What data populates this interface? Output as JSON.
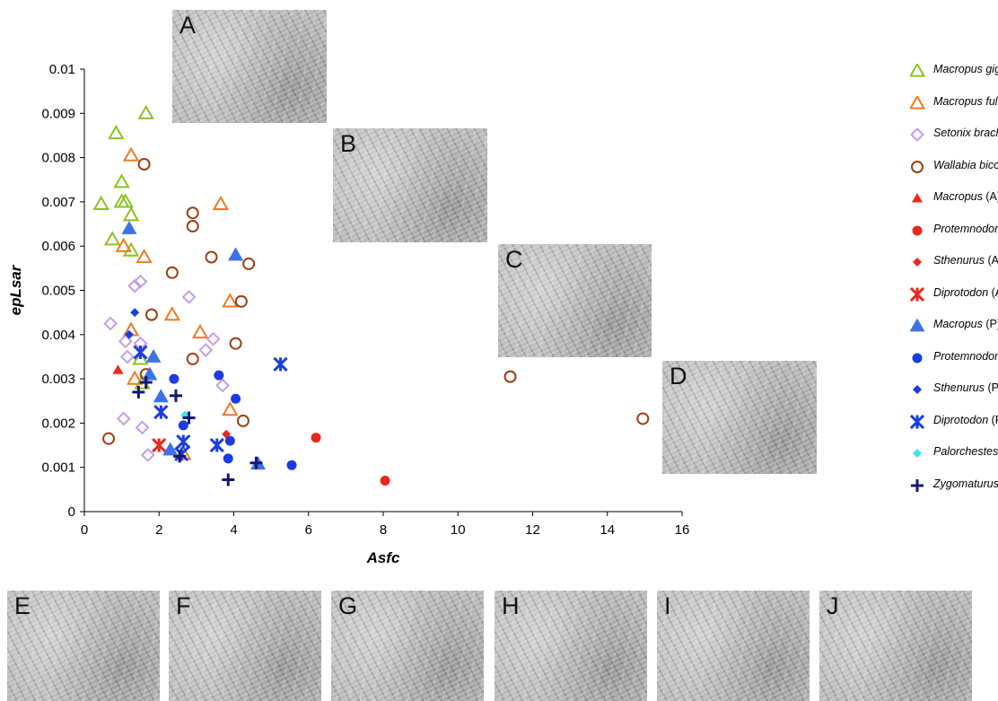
{
  "chart_data": {
    "type": "scatter",
    "xlabel": "Asfc",
    "ylabel": "epLsar",
    "xlim": [
      0,
      16
    ],
    "ylim": [
      0,
      0.01
    ],
    "x_ticks": [
      "0",
      "2",
      "4",
      "6",
      "8",
      "10",
      "12",
      "14",
      "16"
    ],
    "y_ticks": [
      "0",
      "0.001",
      "0.002",
      "0.003",
      "0.004",
      "0.005",
      "0.006",
      "0.007",
      "0.008",
      "0.009",
      "0.01"
    ],
    "legend_position": "right",
    "series": [
      {
        "name": "Macropus giganteus",
        "name_italic": "Macropus giganteus",
        "name_suffix": "",
        "marker": "triangle-open",
        "color": "#8ac31f",
        "points": [
          [
            1.65,
            0.009
          ],
          [
            0.85,
            0.00855
          ],
          [
            1.0,
            0.00745
          ],
          [
            0.45,
            0.00695
          ],
          [
            1.0,
            0.007
          ],
          [
            1.1,
            0.007
          ],
          [
            1.25,
            0.0067
          ],
          [
            0.75,
            0.00615
          ],
          [
            1.25,
            0.0059
          ],
          [
            1.5,
            0.00345
          ],
          [
            1.55,
            0.0029
          ]
        ]
      },
      {
        "name": "Macropus fuliginosus",
        "name_italic": "Macropus fuliginosus",
        "name_suffix": "",
        "marker": "triangle-open",
        "color": "#f07a22",
        "points": [
          [
            1.25,
            0.00805
          ],
          [
            3.65,
            0.00695
          ],
          [
            1.05,
            0.006
          ],
          [
            1.6,
            0.00575
          ],
          [
            3.9,
            0.00475
          ],
          [
            2.35,
            0.00445
          ],
          [
            3.1,
            0.00405
          ],
          [
            1.25,
            0.0041
          ],
          [
            1.35,
            0.003
          ],
          [
            3.9,
            0.0023
          ],
          [
            2.65,
            0.0013
          ]
        ]
      },
      {
        "name": "Setonix brachyurus",
        "name_italic": "Setonix brachyurus",
        "name_suffix": "",
        "marker": "diamond-open",
        "color": "#c59ee6",
        "points": [
          [
            1.35,
            0.0051
          ],
          [
            1.5,
            0.0052
          ],
          [
            2.8,
            0.00485
          ],
          [
            0.7,
            0.00425
          ],
          [
            1.1,
            0.00385
          ],
          [
            1.5,
            0.0038
          ],
          [
            3.45,
            0.0039
          ],
          [
            3.25,
            0.00365
          ],
          [
            1.15,
            0.0035
          ],
          [
            3.7,
            0.00285
          ],
          [
            1.05,
            0.0021
          ],
          [
            1.55,
            0.0019
          ],
          [
            1.7,
            0.00128
          ]
        ]
      },
      {
        "name": "Wallabia bicolor",
        "name_italic": "Wallabia bicolor",
        "name_suffix": "",
        "marker": "circle-open",
        "color": "#9c3f16",
        "points": [
          [
            1.6,
            0.00785
          ],
          [
            2.9,
            0.00675
          ],
          [
            2.9,
            0.00645
          ],
          [
            3.4,
            0.00575
          ],
          [
            4.4,
            0.0056
          ],
          [
            2.35,
            0.0054
          ],
          [
            4.2,
            0.00475
          ],
          [
            1.8,
            0.00445
          ],
          [
            4.05,
            0.0038
          ],
          [
            2.9,
            0.00345
          ],
          [
            1.65,
            0.0031
          ],
          [
            0.65,
            0.00165
          ],
          [
            4.25,
            0.00205
          ],
          [
            11.4,
            0.00305
          ],
          [
            14.95,
            0.0021
          ]
        ]
      },
      {
        "name": "Macropus (A)",
        "name_italic": "Macropus",
        "name_suffix": " (A)",
        "marker": "triangle-filled-small",
        "color": "#e8281f",
        "points": [
          [
            0.9,
            0.0032
          ]
        ]
      },
      {
        "name": "Protemnodon (A)",
        "name_italic": "Protemnodon",
        "name_suffix": " (A)",
        "marker": "circle-filled",
        "color": "#e8281f",
        "points": [
          [
            6.2,
            0.00167
          ],
          [
            8.05,
            0.0007
          ]
        ]
      },
      {
        "name": "Sthenurus (A)",
        "name_italic": "Sthenurus",
        "name_suffix": " (A)",
        "marker": "diamond-filled",
        "color": "#e8281f",
        "points": [
          [
            3.8,
            0.00175
          ]
        ]
      },
      {
        "name": "Diprotodon (A)",
        "name_italic": "Diprotodon",
        "name_suffix": " (A)",
        "marker": "xstar",
        "color": "#e8281f",
        "points": [
          [
            2.0,
            0.0015
          ]
        ]
      },
      {
        "name": "Macropus (P)",
        "name_italic": "Macropus",
        "name_suffix": " (P)",
        "marker": "triangle-filled",
        "color": "#3c72e6",
        "points": [
          [
            1.2,
            0.0064
          ],
          [
            4.05,
            0.0058
          ],
          [
            1.85,
            0.0035
          ],
          [
            1.75,
            0.0031
          ],
          [
            2.05,
            0.0026
          ],
          [
            2.3,
            0.0014
          ],
          [
            4.65,
            0.00108
          ]
        ]
      },
      {
        "name": "Protemnodon (P)",
        "name_italic": "Protemnodon",
        "name_suffix": " (P)",
        "marker": "circle-filled",
        "color": "#1a3ce0",
        "points": [
          [
            3.6,
            0.00308
          ],
          [
            2.4,
            0.003
          ],
          [
            4.05,
            0.00255
          ],
          [
            2.65,
            0.00195
          ],
          [
            3.9,
            0.0016
          ],
          [
            3.85,
            0.0012
          ],
          [
            5.55,
            0.00105
          ]
        ]
      },
      {
        "name": "Sthenurus (P)",
        "name_italic": "Sthenurus",
        "name_suffix": " (P)",
        "marker": "diamond-filled",
        "color": "#1a3ce0",
        "points": [
          [
            1.35,
            0.0045
          ],
          [
            1.2,
            0.004
          ]
        ]
      },
      {
        "name": "Diprotodon (P)",
        "name_italic": "Diprotodon",
        "name_suffix": " (P)",
        "marker": "xstar",
        "color": "#1a3ce0",
        "points": [
          [
            5.25,
            0.00333
          ],
          [
            1.5,
            0.0036
          ],
          [
            2.05,
            0.00225
          ],
          [
            2.65,
            0.00158
          ],
          [
            3.55,
            0.0015
          ],
          [
            2.6,
            0.0013
          ]
        ]
      },
      {
        "name": "Palorchestes (P)",
        "name_italic": "Palorchestes",
        "name_suffix": " (P)",
        "marker": "diamond-filled",
        "color": "#37e6e8",
        "points": [
          [
            2.7,
            0.00218
          ]
        ]
      },
      {
        "name": "Zygomaturus (P)",
        "name_italic": "Zygomaturus",
        "name_suffix": " (P)",
        "marker": "plus",
        "color": "#14186e",
        "points": [
          [
            1.45,
            0.0027
          ],
          [
            1.65,
            0.00292
          ],
          [
            2.45,
            0.00262
          ],
          [
            2.8,
            0.00212
          ],
          [
            2.55,
            0.00125
          ],
          [
            4.6,
            0.0011
          ],
          [
            3.85,
            0.00072
          ]
        ]
      }
    ]
  },
  "micrographs": [
    {
      "id": "A",
      "label": "A"
    },
    {
      "id": "B",
      "label": "B"
    },
    {
      "id": "C",
      "label": "C"
    },
    {
      "id": "D",
      "label": "D"
    },
    {
      "id": "E",
      "label": "E"
    },
    {
      "id": "F",
      "label": "F"
    },
    {
      "id": "G",
      "label": "G"
    },
    {
      "id": "H",
      "label": "H"
    },
    {
      "id": "I",
      "label": "I"
    },
    {
      "id": "J",
      "label": "J"
    }
  ]
}
